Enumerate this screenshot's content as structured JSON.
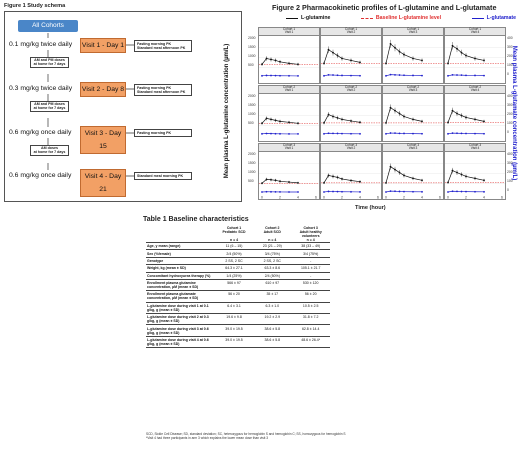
{
  "figure1": {
    "title": "Figure 1 Study schema",
    "all_cohorts": "All Cohorts",
    "stages": [
      {
        "dose": "0.1 mg/kg twice daily",
        "visit": "Visit 1 - Day 1",
        "pk": [
          "Fasting morning PK",
          "Standard meal afternoon PK"
        ]
      },
      {
        "dose": "0.3 mg/kg twice daily",
        "visit": "Visit 2 - Day 8",
        "pk": [
          "Fasting morning PK",
          "Standard meal afternoon PK"
        ]
      },
      {
        "dose": "0.6 mg/kg once daily",
        "visit": "Visit 3 - Day 15",
        "pk": [
          "Fasting morning PK"
        ]
      },
      {
        "dose": "0.6 mg/kg once daily",
        "visit": "Visit 4 - Day 21",
        "pk": [
          "Standard meal morning PK"
        ]
      }
    ],
    "home_dosing": [
      "AM and PM doses",
      "at home for 7 days"
    ],
    "home_dosing_last": [
      "AM doses",
      "at home for 7 days"
    ]
  },
  "figure2": {
    "title": "Figure 2 Pharmacokinetic profiles of L-glutamine and L-glutamate",
    "legend": [
      {
        "label": "L-glutamine",
        "color": "#111111",
        "style": "solid"
      },
      {
        "label": "Baseline L-glutamine level",
        "color": "#e03030",
        "style": "dashed"
      },
      {
        "label": "L-glutamate",
        "color": "#2020cc",
        "style": "solid"
      }
    ],
    "y_left_title": "Mean plasma L-glutamine concentration (µm/L)",
    "y_right_title": "Mean plasma L-glutamate concentration (µm/L)",
    "x_title": "Time (hour)",
    "x_ticks": [
      "0",
      "2",
      "4",
      "6",
      "0",
      "2",
      "4",
      "6",
      "0",
      "2",
      "4",
      "6",
      "0",
      "2",
      "4",
      "6"
    ],
    "y_ticks_left": [
      "2000",
      "1500",
      "1000",
      "500"
    ],
    "y_ticks_right": [
      "400",
      "300",
      "200",
      "100",
      "0"
    ],
    "rows": [
      {
        "panels": [
          "Cohort 1\nVisit 1",
          "Cohort 1\nVisit 2",
          "Cohort 1\nVisit 3",
          "Cohort 1\nVisit 4"
        ]
      },
      {
        "panels": [
          "Cohort 2\nVisit 1",
          "Cohort 2\nVisit 2",
          "Cohort 2\nVisit 3",
          "Cohort 2\nVisit 4"
        ]
      },
      {
        "panels": [
          "Cohort 3\nVisit 1",
          "Cohort 3\nVisit 2",
          "Cohort 3\nVisit 3",
          "Cohort 3\nVisit 4"
        ]
      }
    ]
  },
  "chart_data": {
    "type": "line",
    "x": [
      0,
      0.5,
      1,
      1.5,
      2,
      3,
      4
    ],
    "ylim": [
      0,
      2000
    ],
    "panels": [
      {
        "cohort": 1,
        "visit": 1,
        "glutamine": [
          650,
          950,
          900,
          850,
          780,
          700,
          650
        ],
        "glutamate": [
          60,
          80,
          75,
          70,
          65,
          60,
          55
        ]
      },
      {
        "cohort": 1,
        "visit": 2,
        "glutamine": [
          700,
          1400,
          1250,
          1100,
          950,
          850,
          750
        ],
        "glutamate": [
          60,
          110,
          100,
          90,
          80,
          70,
          65
        ]
      },
      {
        "cohort": 1,
        "visit": 3,
        "glutamine": [
          700,
          1700,
          1500,
          1300,
          1150,
          950,
          850
        ],
        "glutamate": [
          60,
          120,
          110,
          100,
          90,
          80,
          70
        ]
      },
      {
        "cohort": 1,
        "visit": 4,
        "glutamine": [
          700,
          1600,
          1450,
          1250,
          1100,
          950,
          850
        ],
        "glutamate": [
          60,
          110,
          100,
          95,
          85,
          80,
          70
        ]
      },
      {
        "cohort": 2,
        "visit": 1,
        "glutamine": [
          600,
          850,
          800,
          750,
          700,
          650,
          600
        ],
        "glutamate": [
          60,
          75,
          70,
          65,
          60,
          55,
          55
        ]
      },
      {
        "cohort": 2,
        "visit": 2,
        "glutamine": [
          620,
          1050,
          950,
          880,
          800,
          720,
          650
        ],
        "glutamate": [
          60,
          90,
          85,
          80,
          70,
          65,
          60
        ]
      },
      {
        "cohort": 2,
        "visit": 3,
        "glutamine": [
          620,
          1400,
          1250,
          1100,
          950,
          800,
          700
        ],
        "glutamate": [
          60,
          100,
          95,
          85,
          80,
          70,
          65
        ]
      },
      {
        "cohort": 2,
        "visit": 4,
        "glutamine": [
          640,
          1250,
          1100,
          1000,
          900,
          800,
          700
        ],
        "glutamate": [
          60,
          95,
          90,
          85,
          75,
          70,
          65
        ]
      },
      {
        "cohort": 3,
        "visit": 1,
        "glutamine": [
          500,
          700,
          680,
          650,
          600,
          560,
          520
        ],
        "glutamate": [
          50,
          65,
          60,
          58,
          55,
          50,
          50
        ]
      },
      {
        "cohort": 3,
        "visit": 2,
        "glutamine": [
          520,
          900,
          850,
          800,
          720,
          640,
          580
        ],
        "glutamate": [
          50,
          80,
          75,
          70,
          65,
          60,
          55
        ]
      },
      {
        "cohort": 3,
        "visit": 3,
        "glutamine": [
          520,
          1350,
          1200,
          1050,
          900,
          750,
          650
        ],
        "glutamate": [
          50,
          95,
          90,
          80,
          70,
          65,
          60
        ]
      },
      {
        "cohort": 3,
        "visit": 4,
        "glutamine": [
          540,
          1150,
          1050,
          950,
          850,
          750,
          650
        ],
        "glutamate": [
          50,
          90,
          85,
          75,
          70,
          65,
          60
        ]
      }
    ]
  },
  "table1": {
    "title": "Table 1 Baseline characteristics",
    "headers": [
      "",
      "Cohort 1\nPediatric SCD\n\nn = 4",
      "Cohort 2\nAdult SCD\n\nn = 4",
      "Cohort 3\nAdult healthy\nvolunteers\nn = 4"
    ],
    "rows": [
      [
        "Age, y mean (range)",
        "11 (6 – 15)",
        "23 (21 – 29)",
        "38 (33 – 49)"
      ],
      [
        "Sex (%female)",
        "2/4 (50%)",
        "3/4 (75%)",
        "3/4 (75%)"
      ],
      [
        "Genotype",
        "2 SS, 2 SC",
        "2 SS, 2 SC",
        "-"
      ],
      [
        "Weight, kg (mean ± SD)",
        "64.3 ± 27.1",
        "63.3 ± 8.6",
        "105.1 ± 21.7"
      ],
      [
        "Concomitant hydroxyurea therapy (%)",
        "1/4 (25%)",
        "2/4 (50%)",
        "-"
      ],
      [
        "Enrollment plasma glutamine concentration, µM (mean ± SD)",
        "566 ± 97",
        "610 ± 97",
        "530 ± 120"
      ],
      [
        "Enrollment plasma glutamate concentration, µM (mean ± SD)",
        "56 ± 20",
        "35 ± 17",
        "56 ± 20"
      ],
      [
        "L-glutamine dose during visit 1 at 0.1 g/kg, g (mean ± SD)",
        "6.4 ± 3.1",
        "6.3 ± 1.0",
        "10.5 ± 2.5"
      ],
      [
        "L-glutamine dose during visit 2 at 0.3 g/kg, g (mean ± SD)",
        "19.6 ± 9.8",
        "19.2 ± 2.9",
        "31.8 ± 7.2"
      ],
      [
        "L-glutamine dose during visit 3 at 0.6 g/kg, g (mean ± SD)",
        "39.0 ± 19.5",
        "38.6 ± 5.8",
        "62.8 ± 14.4"
      ],
      [
        "L-glutamine dose during visit 4 at 0.6 g/kg, g (mean ± SD)",
        "39.0 ± 19.5",
        "38.6 ± 5.8",
        "48.6 ± 26.4*"
      ]
    ],
    "footnotes": [
      "SCD, Sickle Cell Disease; SD, standard deviation; SC, heterozygous for hemoglobin S and hemoglobin C; SS, homozygous for hemoglobin S",
      "*Visit 4 had three participants in arm 3 which explains the lower mean dose than visit 3"
    ]
  }
}
